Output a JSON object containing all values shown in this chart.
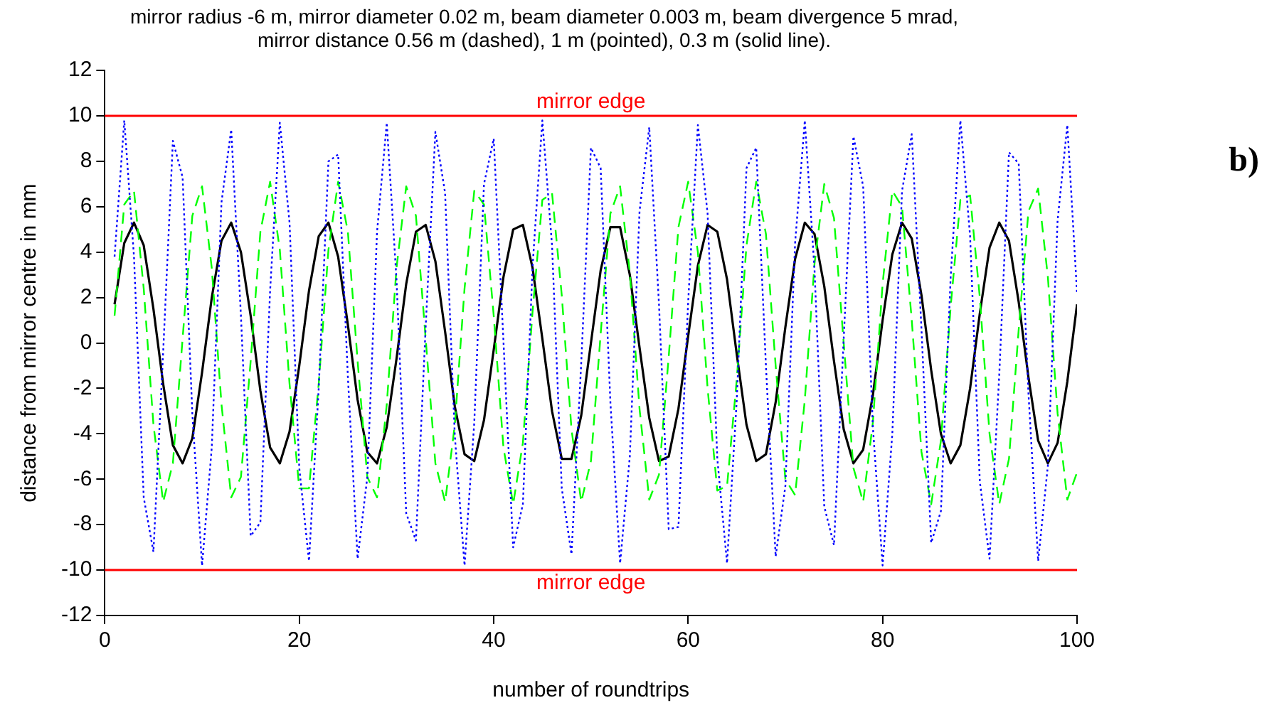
{
  "chart_data": {
    "type": "line",
    "title": "mirror radius -6 m, mirror diameter 0.02 m, beam diameter 0.003 m, beam divergence 5 mrad,",
    "subtitle": "mirror distance 0.56 m (dashed), 1 m (pointed), 0.3 m (solid line).",
    "xlabel": "number of roundtrips",
    "ylabel": "distance from mirror centre in mm",
    "annotations": [
      "b)"
    ],
    "x": [
      1,
      2,
      3,
      4,
      5,
      6,
      7,
      8,
      9,
      10,
      11,
      12,
      13,
      14,
      15,
      16,
      17,
      18,
      19,
      20,
      21,
      22,
      23,
      24,
      25,
      26,
      27,
      28,
      29,
      30,
      31,
      32,
      33,
      34,
      35,
      36,
      37,
      38,
      39,
      40,
      41,
      42,
      43,
      44,
      45,
      46,
      47,
      48,
      49,
      50,
      51,
      52,
      53,
      54,
      55,
      56,
      57,
      58,
      59,
      60,
      61,
      62,
      63,
      64,
      65,
      66,
      67,
      68,
      69,
      70,
      71,
      72,
      73,
      74,
      75,
      76,
      77,
      78,
      79,
      80,
      81,
      82,
      83,
      84,
      85,
      86,
      87,
      88,
      89,
      90,
      91,
      92,
      93,
      94,
      95,
      96,
      97,
      98,
      99,
      100
    ],
    "series": [
      {
        "color": "#0000ff",
        "line_style": "dotted",
        "values": [
          3.8,
          9.8,
          3.8,
          -6.8,
          -9.2,
          -0.4,
          8.9,
          7.3,
          -3.1,
          -9.8,
          -4.6,
          6.2,
          9.4,
          1.2,
          -8.5,
          -7.9,
          2.3,
          9.7,
          5.3,
          -5.5,
          -9.6,
          -2.0,
          8.0,
          8.3,
          -1.5,
          -9.5,
          -5.9,
          4.9,
          9.7,
          2.8,
          -7.5,
          -8.7,
          0.7,
          9.3,
          6.6,
          -4.1,
          -9.8,
          -3.5,
          7.0,
          9.0,
          0.1,
          -9.0,
          -7.1,
          3.4,
          9.8,
          4.3,
          -6.4,
          -9.3,
          -0.9,
          8.6,
          7.7,
          -2.6,
          -9.7,
          -5.0,
          5.8,
          9.5,
          1.7,
          -8.2,
          -8.1,
          1.8,
          9.6,
          5.7,
          -5.1,
          -9.7,
          -2.5,
          7.7,
          8.6,
          -1.0,
          -9.4,
          -6.3,
          4.4,
          9.8,
          3.2,
          -7.2,
          -8.9,
          0.2,
          9.1,
          6.9,
          -3.7,
          -9.8,
          -4.0,
          6.7,
          9.2,
          0.6,
          -8.8,
          -7.4,
          2.9,
          9.8,
          4.7,
          -6.1,
          -9.5,
          -1.4,
          8.4,
          7.9,
          -2.2,
          -9.6,
          -5.4,
          5.4,
          9.6,
          2.2
        ]
      },
      {
        "color": "#00ff00",
        "line_style": "dashed",
        "values": [
          1.2,
          6.1,
          6.7,
          2.4,
          -3.6,
          -7.0,
          -5.3,
          0.2,
          5.6,
          6.9,
          3.3,
          -2.7,
          -6.8,
          -5.9,
          -0.8,
          4.9,
          7.1,
          4.1,
          -1.8,
          -6.4,
          -6.4,
          -1.8,
          4.1,
          7.1,
          4.9,
          -0.8,
          -5.9,
          -6.8,
          -2.7,
          3.3,
          6.9,
          5.6,
          0.2,
          -5.3,
          -7.0,
          -3.6,
          2.4,
          6.7,
          6.1,
          1.2,
          -4.6,
          -7.1,
          -4.4,
          1.4,
          6.3,
          6.6,
          2.1,
          -3.8,
          -7.0,
          -5.2,
          0.4,
          5.7,
          6.9,
          3.1,
          -2.9,
          -6.9,
          -5.8,
          -0.6,
          5.1,
          7.1,
          4.0,
          -2.0,
          -6.5,
          -6.3,
          -1.6,
          4.3,
          7.1,
          4.8,
          -1.0,
          -6.0,
          -6.7,
          -2.5,
          3.5,
          7.0,
          5.5,
          0.0,
          -5.5,
          -7.0,
          -3.5,
          2.6,
          6.7,
          6.0,
          1.0,
          -4.8,
          -7.1,
          -4.3,
          1.6,
          6.3,
          6.5,
          2.0,
          -4.0,
          -7.1,
          -5.1,
          0.6,
          5.8,
          6.8,
          2.9,
          -3.1,
          -6.9,
          -5.7
        ]
      },
      {
        "color": "#000000",
        "line_style": "solid",
        "values": [
          1.7,
          4.4,
          5.3,
          4.3,
          1.5,
          -1.8,
          -4.5,
          -5.3,
          -4.2,
          -1.3,
          2.0,
          4.5,
          5.3,
          4.0,
          1.2,
          -2.1,
          -4.6,
          -5.3,
          -3.9,
          -1.0,
          2.3,
          4.7,
          5.3,
          3.8,
          0.8,
          -2.5,
          -4.8,
          -5.3,
          -3.7,
          -0.7,
          2.6,
          4.9,
          5.2,
          3.6,
          0.5,
          -2.8,
          -4.9,
          -5.2,
          -3.4,
          -0.3,
          2.9,
          5.0,
          5.2,
          3.3,
          0.2,
          -3.0,
          -5.1,
          -5.1,
          -3.2,
          0.0,
          3.2,
          5.1,
          5.1,
          3.0,
          -0.2,
          -3.3,
          -5.2,
          -5.0,
          -2.9,
          0.3,
          3.4,
          5.2,
          4.9,
          2.8,
          -0.5,
          -3.6,
          -5.2,
          -4.9,
          -2.6,
          0.7,
          3.7,
          5.3,
          4.8,
          2.5,
          -0.8,
          -3.8,
          -5.3,
          -4.7,
          -2.3,
          1.0,
          3.9,
          5.3,
          4.6,
          2.1,
          -1.2,
          -4.0,
          -5.3,
          -4.5,
          -2.0,
          1.3,
          4.2,
          5.3,
          4.5,
          1.8,
          -1.5,
          -4.3,
          -5.3,
          -4.4,
          -1.7,
          1.7
        ]
      }
    ],
    "xlim": [
      0,
      100
    ],
    "xticks": [
      0,
      20,
      40,
      60,
      80,
      100
    ],
    "ylim": [
      -12,
      12
    ],
    "yticks": [
      -12,
      -10,
      -8,
      -6,
      -4,
      -2,
      0,
      2,
      4,
      6,
      8,
      10,
      12
    ],
    "ref_lines": [
      {
        "axis": "y",
        "value": 10,
        "label": "mirror edge",
        "color": "#ff0000"
      },
      {
        "axis": "y",
        "value": -10,
        "label": "mirror edge",
        "color": "#ff0000"
      }
    ],
    "grid": false,
    "legend": false,
    "marker": "none"
  }
}
